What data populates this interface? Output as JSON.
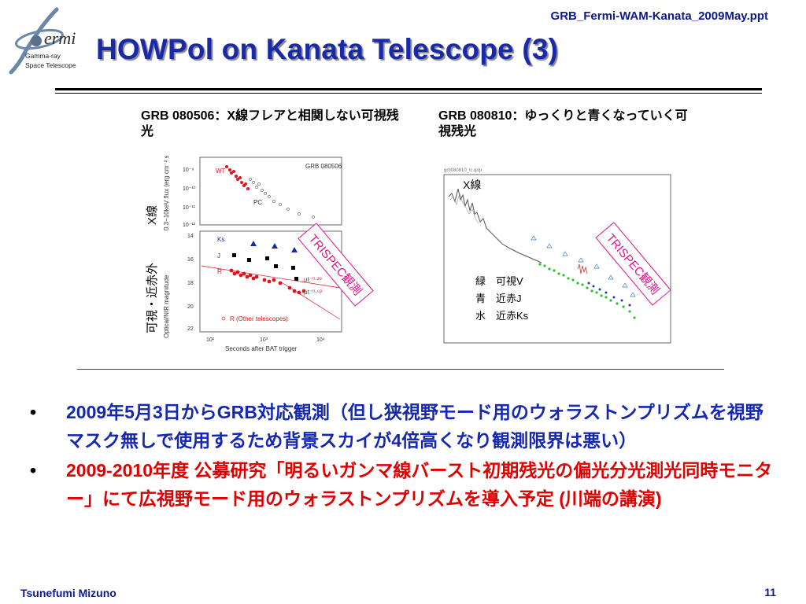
{
  "header": {
    "filename": "GRB_Fermi-WAM-Kanata_2009May.ppt",
    "title": "HOWPol on Kanata Telescope (3)",
    "logo_text": "ermi",
    "logo_sub1": "Gamma-ray",
    "logo_sub2": "Space Telescope"
  },
  "left_panel": {
    "caption": "GRB 080506：X線フレアと相関しない可視残光",
    "plot_title": "GRB 080506",
    "side_label_x": "X線",
    "side_label_opt": "可視・近赤外",
    "ylabel_top": "0.3−10keV flux (erg cm⁻² s⁻¹)",
    "ylabel_bottom": "Optical/NIR magnitude",
    "xlabel": "Seconds after BAT trigger",
    "wt": "WT",
    "pc": "PC",
    "ks": "Ks",
    "j": "J",
    "r": "R",
    "other": "R (Other telescopes)",
    "fit1": "μt⁻⁰·²⁹",
    "fit2": "μt⁻⁰·⁶³",
    "ytick_top": [
      "10⁻⁹",
      "10⁻¹⁰",
      "10⁻¹¹",
      "10⁻¹²"
    ],
    "ytick_bottom": [
      "14",
      "16",
      "18",
      "20",
      "22"
    ],
    "xtick": [
      "10²",
      "10³",
      "10⁴"
    ],
    "stamp": "TRISPEC観測"
  },
  "right_panel": {
    "caption": "GRB 080810：ゆっくりと青くなっていく可視残光",
    "file_label": "grb080810_lc.qdp",
    "xray_label": "X線",
    "legend": [
      "緑　可視V",
      "青　近赤J",
      "水　近赤Ks"
    ],
    "stamp": "TRISPEC観測"
  },
  "bullets": [
    {
      "text": "2009年5月3日からGRB対応観測（但し狭視野モード用のウォラストンプリズムを視野マスク無しで使用するため背景スカイが4倍高くなり観測限界は悪い）",
      "color": "#1428b4"
    },
    {
      "text": "2009-2010年度 公募研究「明るいガンマ線バースト初期残光の偏光分光測光同時モニター」にて広視野モード用のウォラストンプリズムを導入予定 (川端の講演)",
      "color": "#e00000"
    }
  ],
  "footer": {
    "author": "Tsunefumi Mizuno",
    "page": "11"
  }
}
